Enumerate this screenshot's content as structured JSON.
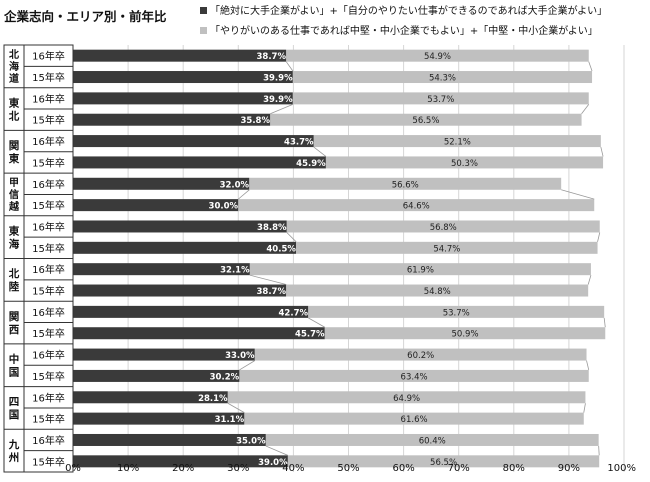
{
  "title": "企業志向・エリア別・前年比",
  "legend": {
    "dark": "「絶対に大手企業がよい」+「自分のやりたい仕事ができるのであれば大手企業がよい」",
    "light": "「やりがいのある仕事であれば中堅・中小企業でもよい」+「中堅・中小企業がよい」"
  },
  "colors": {
    "dark": "#3a3a3a",
    "light": "#c0c0c0",
    "connector": "#999999",
    "border": "#333333"
  },
  "chart_data": {
    "type": "bar",
    "orientation": "horizontal",
    "stacked": true,
    "groups": [
      {
        "name": "北海道",
        "rows": [
          {
            "label": "16年卒",
            "dark": 38.7,
            "light": 54.9
          },
          {
            "label": "15年卒",
            "dark": 39.9,
            "light": 54.3
          }
        ]
      },
      {
        "name": "東北",
        "rows": [
          {
            "label": "16年卒",
            "dark": 39.9,
            "light": 53.7
          },
          {
            "label": "15年卒",
            "dark": 35.8,
            "light": 56.5
          }
        ]
      },
      {
        "name": "関東",
        "rows": [
          {
            "label": "16年卒",
            "dark": 43.7,
            "light": 52.1
          },
          {
            "label": "15年卒",
            "dark": 45.9,
            "light": 50.3
          }
        ]
      },
      {
        "name": "甲信越",
        "rows": [
          {
            "label": "16年卒",
            "dark": 32.0,
            "light": 56.6
          },
          {
            "label": "15年卒",
            "dark": 30.0,
            "light": 64.6
          }
        ]
      },
      {
        "name": "東海",
        "rows": [
          {
            "label": "16年卒",
            "dark": 38.8,
            "light": 56.8
          },
          {
            "label": "15年卒",
            "dark": 40.5,
            "light": 54.7
          }
        ]
      },
      {
        "name": "北陸",
        "rows": [
          {
            "label": "16年卒",
            "dark": 32.1,
            "light": 61.9
          },
          {
            "label": "15年卒",
            "dark": 38.7,
            "light": 54.8
          }
        ]
      },
      {
        "name": "関西",
        "rows": [
          {
            "label": "16年卒",
            "dark": 42.7,
            "light": 53.7
          },
          {
            "label": "15年卒",
            "dark": 45.7,
            "light": 50.9
          }
        ]
      },
      {
        "name": "中国",
        "rows": [
          {
            "label": "16年卒",
            "dark": 33.0,
            "light": 60.2
          },
          {
            "label": "15年卒",
            "dark": 30.2,
            "light": 63.4
          }
        ]
      },
      {
        "name": "四国",
        "rows": [
          {
            "label": "16年卒",
            "dark": 28.1,
            "light": 64.9
          },
          {
            "label": "15年卒",
            "dark": 31.1,
            "light": 61.6
          }
        ]
      },
      {
        "name": "九州",
        "rows": [
          {
            "label": "16年卒",
            "dark": 35.0,
            "light": 60.4
          },
          {
            "label": "15年卒",
            "dark": 39.0,
            "light": 56.5
          }
        ]
      }
    ],
    "x_ticks": [
      "0%",
      "10%",
      "20%",
      "30%",
      "40%",
      "50%",
      "60%",
      "70%",
      "80%",
      "90%",
      "100%"
    ],
    "xlim": [
      0,
      100
    ],
    "value_format": "0.0%",
    "grid": true
  }
}
